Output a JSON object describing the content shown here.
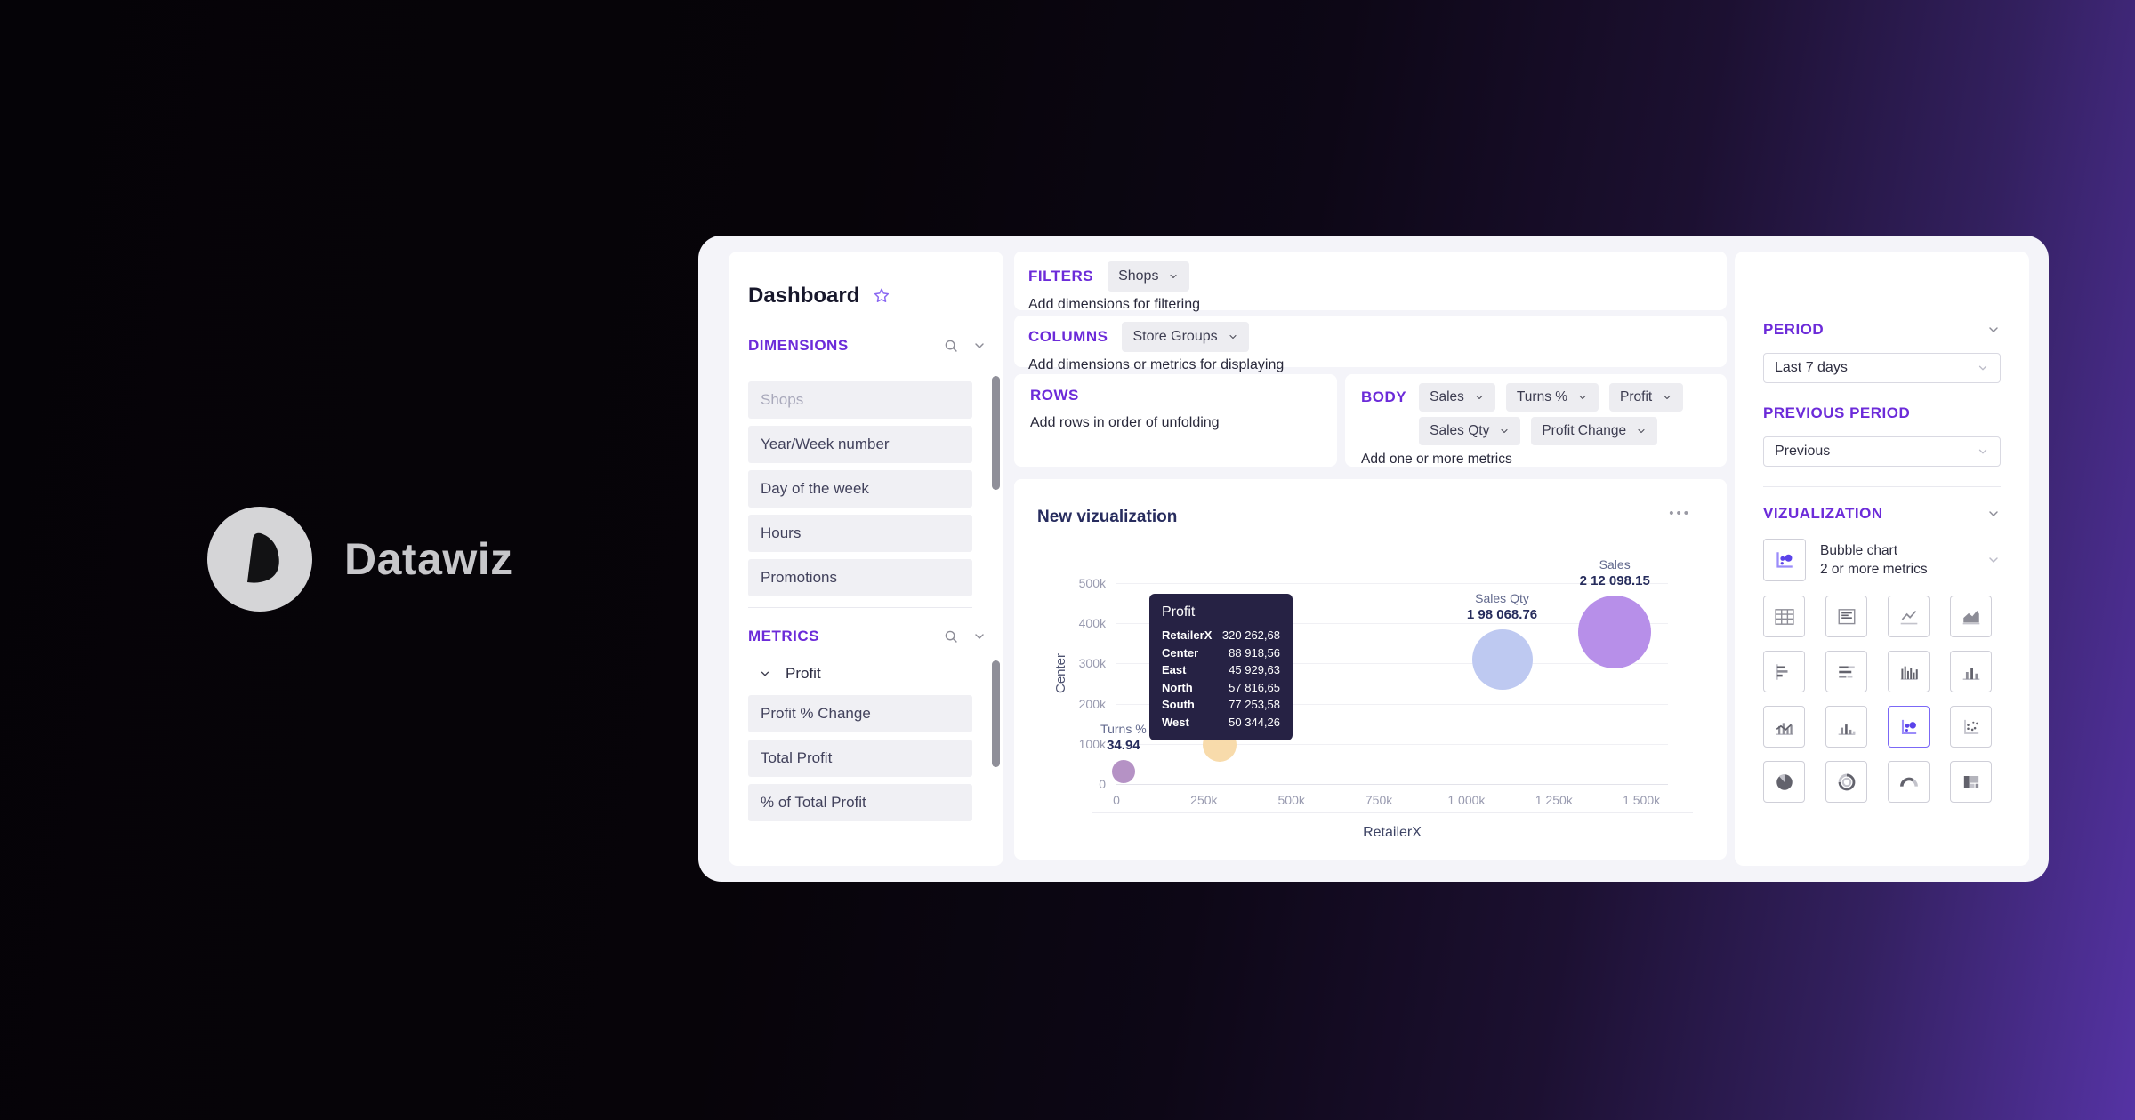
{
  "brand": {
    "name": "Datawiz"
  },
  "colors": {
    "accent": "#6c2bd9",
    "selected_border": "#7b68f6",
    "tooltip_bg": "#262244",
    "card_bg": "#f4f4f9"
  },
  "panel_left": {
    "title": "Dashboard",
    "dimensions": {
      "header": "DIMENSIONS",
      "items": [
        {
          "label": "Shops",
          "muted": true
        },
        {
          "label": "Year/Week number"
        },
        {
          "label": "Day of the week"
        },
        {
          "label": "Hours"
        },
        {
          "label": "Promotions"
        }
      ]
    },
    "metrics": {
      "header": "METRICS",
      "group_label": "Profit",
      "items": [
        {
          "label": "Profit % Change"
        },
        {
          "label": "Total Profit"
        },
        {
          "label": "% of Total Profit"
        }
      ]
    }
  },
  "builder": {
    "filters": {
      "header": "FILTERS",
      "chips": [
        "Shops"
      ],
      "hint": "Add dimensions for filtering"
    },
    "columns": {
      "header": "COLUMNS",
      "chips": [
        "Store Groups"
      ],
      "hint": "Add dimensions or metrics for displaying"
    },
    "rows": {
      "header": "ROWS",
      "hint": "Add rows in order of unfolding"
    },
    "body": {
      "header": "BODY",
      "chips_row1": [
        "Sales",
        "Turns %",
        "Profit"
      ],
      "chips_row2": [
        "Sales Qty",
        "Profit Change"
      ],
      "hint": "Add one or more metrics"
    }
  },
  "panel_right": {
    "period": {
      "header": "PERIOD",
      "value": "Last 7 days"
    },
    "previous_period": {
      "header": "PREVIOUS PERIOD",
      "value": "Previous"
    },
    "vizualization": {
      "header": "VIZUALIZATION",
      "selected_title": "Bubble chart",
      "selected_subtitle": "2 or more metrics",
      "grid": [
        {
          "name": "table"
        },
        {
          "name": "report"
        },
        {
          "name": "line-chart"
        },
        {
          "name": "area-chart"
        },
        {
          "name": "bar-horizontal"
        },
        {
          "name": "bar-horizontal-stacked"
        },
        {
          "name": "histogram"
        },
        {
          "name": "column-chart"
        },
        {
          "name": "combo-chart"
        },
        {
          "name": "grouped-column-chart"
        },
        {
          "name": "bubble-chart",
          "selected": true
        },
        {
          "name": "scatter-plot"
        },
        {
          "name": "pie-chart"
        },
        {
          "name": "donut-chart"
        },
        {
          "name": "gauge-chart"
        },
        {
          "name": "treemap"
        }
      ]
    }
  },
  "chart_data": {
    "type": "scatter",
    "title": "New vizualization",
    "menu": "•••",
    "xlabel": "RetailerX",
    "ylabel": "Center",
    "xlim": [
      0,
      1576000
    ],
    "ylim": [
      0,
      535000
    ],
    "grid": "horizontal",
    "xticks": [
      {
        "v": 0,
        "label": "0"
      },
      {
        "v": 250000,
        "label": "250k"
      },
      {
        "v": 500000,
        "label": "500k"
      },
      {
        "v": 750000,
        "label": "750k"
      },
      {
        "v": 1000000,
        "label": "1 000k"
      },
      {
        "v": 1250000,
        "label": "1 250k"
      },
      {
        "v": 1500000,
        "label": "1 500k"
      }
    ],
    "yticks": [
      {
        "v": 0,
        "label": "0"
      },
      {
        "v": 100000,
        "label": "100k"
      },
      {
        "v": 200000,
        "label": "200k"
      },
      {
        "v": 300000,
        "label": "300k"
      },
      {
        "v": 400000,
        "label": "400k"
      },
      {
        "v": 500000,
        "label": "500k"
      }
    ],
    "bubbles": [
      {
        "series": "Turns %",
        "value_label": "34.94",
        "x": 20000,
        "y": 30000,
        "r": 13,
        "color": "#b592c5"
      },
      {
        "series": "",
        "value_label": "",
        "x": 296000,
        "y": 97000,
        "r": 19,
        "color": "#f8dbab"
      },
      {
        "series": "Sales Qty",
        "value_label": "1 98 068.76",
        "x": 1102000,
        "y": 310000,
        "r": 34,
        "color": "#bec9f1"
      },
      {
        "series": "Sales",
        "value_label": "2 12 098.15",
        "x": 1424000,
        "y": 377000,
        "r": 41,
        "color": "#b78fe9"
      }
    ],
    "tooltip": {
      "title": "Profit",
      "rows": [
        {
          "label": "RetailerX",
          "value": "320 262,68"
        },
        {
          "label": "Center",
          "value": "88 918,56"
        },
        {
          "label": "East",
          "value": "45 929,63"
        },
        {
          "label": "North",
          "value": "57 816,65"
        },
        {
          "label": "South",
          "value": "77 253,58"
        },
        {
          "label": "West",
          "value": "50 344,26"
        }
      ]
    }
  }
}
